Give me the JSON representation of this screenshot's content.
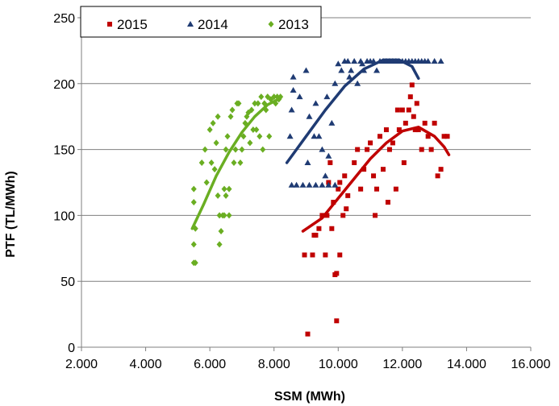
{
  "chart_data": {
    "type": "scatter",
    "title": "",
    "xlabel": "SSM (MWh)",
    "ylabel": "PTF (TL/MWh)",
    "xlim": [
      2000,
      16000
    ],
    "ylim": [
      0,
      250
    ],
    "x_ticks": [
      2000,
      4000,
      6000,
      8000,
      10000,
      12000,
      14000,
      16000
    ],
    "x_tick_labels": [
      "2.000",
      "4.000",
      "6.000",
      "8.000",
      "10.000",
      "12.000",
      "14.000",
      "16.000"
    ],
    "y_ticks": [
      0,
      50,
      100,
      150,
      200,
      250
    ],
    "y_tick_labels": [
      "0",
      "50",
      "100",
      "150",
      "200",
      "250"
    ],
    "grid": "horizontal",
    "legend_position": "top-left",
    "series": [
      {
        "name": "2015",
        "color": "#C00000",
        "marker": "square",
        "points": [
          [
            9050,
            10
          ],
          [
            9950,
            20
          ],
          [
            9900,
            55
          ],
          [
            9950,
            56
          ],
          [
            8950,
            70
          ],
          [
            9200,
            70
          ],
          [
            9600,
            70
          ],
          [
            10050,
            70
          ],
          [
            9250,
            85
          ],
          [
            9300,
            85
          ],
          [
            9400,
            90
          ],
          [
            9650,
            100
          ],
          [
            9800,
            90
          ],
          [
            9850,
            110
          ],
          [
            10150,
            100
          ],
          [
            10300,
            115
          ],
          [
            10000,
            120
          ],
          [
            10050,
            125
          ],
          [
            10200,
            130
          ],
          [
            10500,
            140
          ],
          [
            10600,
            150
          ],
          [
            10800,
            135
          ],
          [
            10900,
            150
          ],
          [
            11000,
            155
          ],
          [
            11100,
            130
          ],
          [
            11200,
            120
          ],
          [
            11300,
            160
          ],
          [
            11400,
            135
          ],
          [
            11500,
            165
          ],
          [
            11600,
            150
          ],
          [
            11700,
            155
          ],
          [
            11800,
            120
          ],
          [
            11900,
            165
          ],
          [
            12000,
            180
          ],
          [
            12100,
            170
          ],
          [
            12200,
            180
          ],
          [
            12250,
            190
          ],
          [
            12300,
            199
          ],
          [
            12350,
            175
          ],
          [
            12400,
            165
          ],
          [
            12500,
            165
          ],
          [
            12600,
            150
          ],
          [
            12700,
            170
          ],
          [
            12800,
            160
          ],
          [
            12900,
            150
          ],
          [
            13000,
            170
          ],
          [
            13100,
            130
          ],
          [
            13200,
            135
          ],
          [
            13300,
            160
          ],
          [
            13400,
            160
          ],
          [
            11150,
            100
          ],
          [
            11550,
            110
          ],
          [
            12050,
            140
          ],
          [
            9500,
            100
          ],
          [
            9700,
            125
          ],
          [
            9750,
            140
          ],
          [
            10250,
            105
          ],
          [
            10700,
            120
          ],
          [
            11850,
            180
          ],
          [
            12450,
            185
          ]
        ],
        "trend": [
          [
            8900,
            88
          ],
          [
            9500,
            98
          ],
          [
            10000,
            113
          ],
          [
            10500,
            128
          ],
          [
            11000,
            143
          ],
          [
            11500,
            155
          ],
          [
            12000,
            164
          ],
          [
            12500,
            167
          ],
          [
            13000,
            160
          ],
          [
            13300,
            152
          ],
          [
            13450,
            146
          ]
        ]
      },
      {
        "name": "2014",
        "color": "#1F3B73",
        "marker": "triangle",
        "points": [
          [
            8550,
            123
          ],
          [
            8700,
            123
          ],
          [
            8900,
            123
          ],
          [
            9100,
            123
          ],
          [
            9300,
            123
          ],
          [
            9500,
            123
          ],
          [
            9700,
            123
          ],
          [
            9900,
            123
          ],
          [
            8500,
            160
          ],
          [
            8550,
            180
          ],
          [
            8600,
            205
          ],
          [
            8600,
            195
          ],
          [
            8800,
            190
          ],
          [
            9000,
            210
          ],
          [
            9100,
            175
          ],
          [
            9300,
            185
          ],
          [
            9400,
            160
          ],
          [
            9500,
            150
          ],
          [
            9600,
            130
          ],
          [
            9700,
            145
          ],
          [
            9800,
            170
          ],
          [
            9900,
            200
          ],
          [
            10000,
            215
          ],
          [
            10100,
            210
          ],
          [
            10200,
            217
          ],
          [
            10300,
            217
          ],
          [
            10400,
            210
          ],
          [
            10500,
            217
          ],
          [
            10600,
            200
          ],
          [
            10700,
            217
          ],
          [
            10800,
            210
          ],
          [
            10900,
            217
          ],
          [
            11000,
            217
          ],
          [
            11100,
            217
          ],
          [
            11200,
            210
          ],
          [
            11300,
            217
          ],
          [
            11400,
            217
          ],
          [
            11500,
            217
          ],
          [
            11600,
            217
          ],
          [
            11700,
            217
          ],
          [
            11800,
            217
          ],
          [
            11900,
            217
          ],
          [
            12000,
            217
          ],
          [
            12100,
            217
          ],
          [
            12200,
            217
          ],
          [
            12300,
            217
          ],
          [
            12400,
            217
          ],
          [
            12500,
            217
          ],
          [
            12600,
            217
          ],
          [
            12700,
            217
          ],
          [
            12800,
            217
          ],
          [
            13000,
            217
          ],
          [
            13200,
            217
          ],
          [
            9050,
            140
          ],
          [
            9250,
            160
          ],
          [
            9650,
            190
          ],
          [
            10350,
            205
          ],
          [
            10750,
            215
          ]
        ],
        "trend": [
          [
            8400,
            140
          ],
          [
            9000,
            160
          ],
          [
            9600,
            180
          ],
          [
            10200,
            198
          ],
          [
            10800,
            211
          ],
          [
            11400,
            218
          ],
          [
            11900,
            218
          ],
          [
            12300,
            213
          ],
          [
            12500,
            204
          ]
        ]
      },
      {
        "name": "2013",
        "color": "#6AAE22",
        "marker": "diamond",
        "points": [
          [
            5500,
            64
          ],
          [
            5550,
            64
          ],
          [
            5500,
            78
          ],
          [
            5550,
            90
          ],
          [
            5500,
            110
          ],
          [
            5500,
            120
          ],
          [
            5750,
            140
          ],
          [
            5850,
            150
          ],
          [
            5900,
            125
          ],
          [
            6000,
            165
          ],
          [
            6100,
            170
          ],
          [
            6150,
            135
          ],
          [
            6200,
            155
          ],
          [
            6250,
            175
          ],
          [
            6300,
            100
          ],
          [
            6300,
            78
          ],
          [
            6350,
            88
          ],
          [
            6400,
            100
          ],
          [
            6450,
            120
          ],
          [
            6500,
            150
          ],
          [
            6550,
            160
          ],
          [
            6600,
            120
          ],
          [
            6650,
            175
          ],
          [
            6700,
            180
          ],
          [
            6750,
            140
          ],
          [
            6800,
            150
          ],
          [
            6850,
            185
          ],
          [
            6900,
            185
          ],
          [
            6950,
            140
          ],
          [
            7000,
            150
          ],
          [
            7050,
            160
          ],
          [
            7100,
            170
          ],
          [
            7150,
            175
          ],
          [
            7200,
            178
          ],
          [
            7300,
            180
          ],
          [
            7350,
            165
          ],
          [
            7400,
            185
          ],
          [
            7450,
            165
          ],
          [
            7500,
            185
          ],
          [
            7550,
            160
          ],
          [
            7600,
            190
          ],
          [
            7700,
            185
          ],
          [
            7750,
            180
          ],
          [
            7800,
            190
          ],
          [
            7850,
            160
          ],
          [
            7900,
            188
          ],
          [
            8000,
            190
          ],
          [
            8050,
            185
          ],
          [
            8100,
            190
          ],
          [
            8150,
            188
          ],
          [
            8200,
            190
          ],
          [
            6050,
            140
          ],
          [
            6250,
            115
          ],
          [
            6600,
            100
          ],
          [
            7250,
            155
          ],
          [
            7650,
            150
          ],
          [
            6450,
            100
          ],
          [
            6500,
            115
          ]
        ],
        "trend": [
          [
            5450,
            90
          ],
          [
            5800,
            108
          ],
          [
            6200,
            130
          ],
          [
            6600,
            148
          ],
          [
            7000,
            163
          ],
          [
            7400,
            175
          ],
          [
            7800,
            184
          ],
          [
            8200,
            189
          ]
        ]
      }
    ]
  }
}
